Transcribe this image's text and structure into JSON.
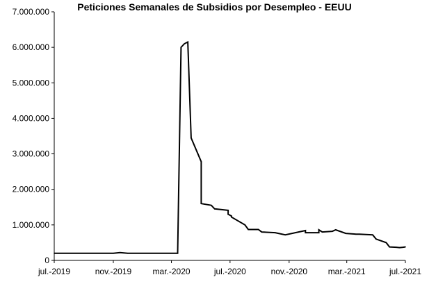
{
  "chart_data": {
    "type": "line",
    "title": "Peticiones Semanales de Subsidios por Desempleo - EEUU",
    "xlabel": "",
    "ylabel": "",
    "ylim": [
      0,
      7000000
    ],
    "yticks": [
      0,
      1000000,
      2000000,
      3000000,
      4000000,
      5000000,
      6000000,
      7000000
    ],
    "ytick_labels": [
      "0",
      "1.000.000",
      "2.000.000",
      "3.000.000",
      "4.000.000",
      "5.000.000",
      "6.000.000",
      "7.000.000"
    ],
    "xlim": [
      "2019-07-01",
      "2021-07-01"
    ],
    "xticks": [
      "2019-07-01",
      "2019-11-01",
      "2020-03-01",
      "2020-07-01",
      "2020-11-01",
      "2021-03-01",
      "2021-07-01"
    ],
    "xtick_labels": [
      "jul.-2019",
      "nov.-2019",
      "mar.-2020",
      "jul.-2020",
      "nov.-2020",
      "mar.-2021",
      "jul.-2021"
    ],
    "grid": false,
    "legend": "none",
    "line_color": "#000000",
    "series": [
      {
        "x": [
          "2019-07-01",
          "2019-11-01",
          "2019-11-15",
          "2019-12-01",
          "2020-02-28",
          "2020-03-14",
          "2020-03-21",
          "2020-03-28",
          "2020-04-04",
          "2020-04-11",
          "2020-05-02",
          "2020-05-02",
          "2020-05-23",
          "2020-05-30",
          "2020-06-27",
          "2020-06-27",
          "2020-07-04",
          "2020-07-04",
          "2020-08-01",
          "2020-08-08",
          "2020-08-29",
          "2020-09-05",
          "2020-10-03",
          "2020-10-24",
          "2020-12-05",
          "2020-12-05",
          "2021-01-02",
          "2021-01-02",
          "2021-01-09",
          "2021-01-30",
          "2021-02-06",
          "2021-02-27",
          "2021-03-20",
          "2021-03-27",
          "2021-04-24",
          "2021-05-01",
          "2021-05-22",
          "2021-05-29",
          "2021-06-12",
          "2021-06-19",
          "2021-06-26",
          "2021-07-01"
        ],
        "y": [
          200000,
          200000,
          220000,
          200000,
          200000,
          200000,
          6000000,
          6100000,
          6150000,
          3450000,
          2780000,
          1600000,
          1550000,
          1450000,
          1410000,
          1300000,
          1250000,
          1220000,
          1000000,
          870000,
          870000,
          800000,
          780000,
          720000,
          840000,
          780000,
          780000,
          860000,
          800000,
          820000,
          860000,
          760000,
          740000,
          740000,
          720000,
          600000,
          500000,
          380000,
          370000,
          360000,
          370000,
          380000
        ]
      }
    ]
  }
}
